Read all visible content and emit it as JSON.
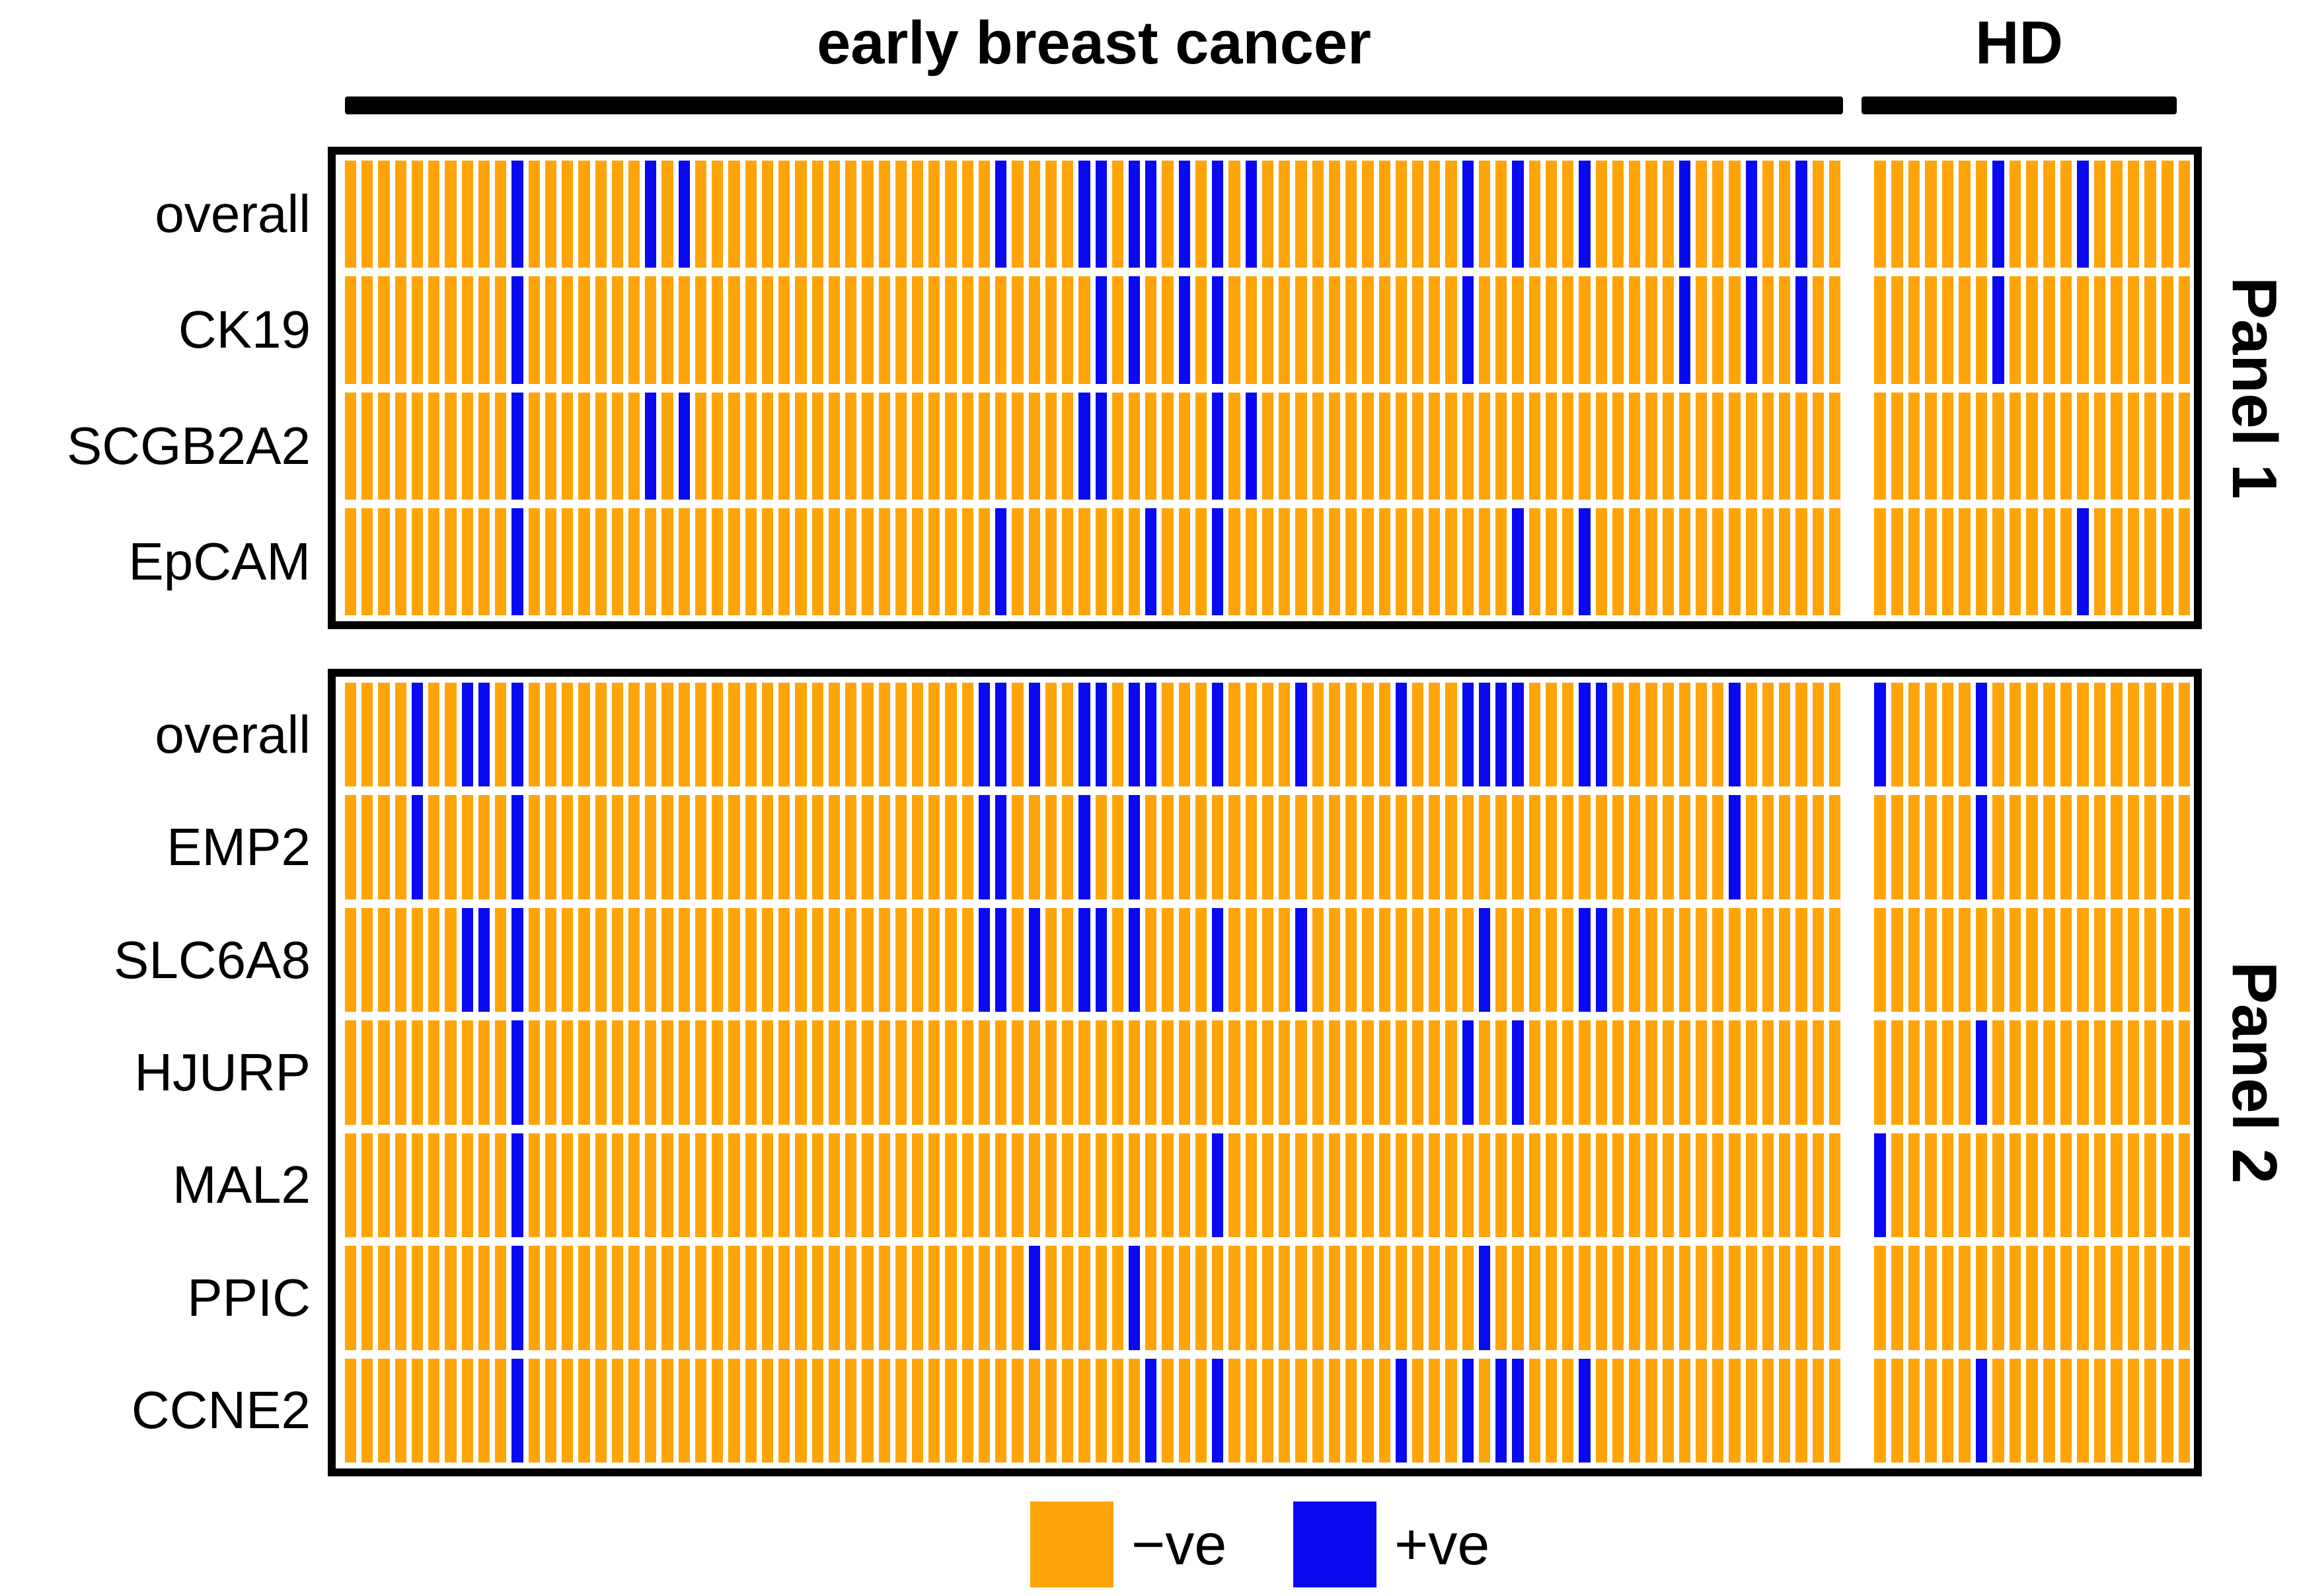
{
  "header": {
    "group1": "early breast cancer",
    "group2": "HD"
  },
  "legend": [
    {
      "label": "−ve",
      "color": "#FFA408"
    },
    {
      "label": "+ve",
      "color": "#0A0AF0"
    }
  ],
  "colors": {
    "negative": "#FFA408",
    "positive": "#0A0AF0",
    "ink": "#000000",
    "background": "#FFFFFF"
  },
  "chart_data": {
    "type": "heatmap",
    "description": "Binary positivity heatmap; each thin vertical bar is one sample. Positions are 1-based sample indices that are positive (+ve, blue); all other samples are negative (-ve, orange).",
    "groups": [
      {
        "label": "early breast cancer",
        "n_samples": 90
      },
      {
        "label": "HD",
        "n_samples": 19
      }
    ],
    "panels": [
      {
        "label": "Panel 1",
        "rows": [
          {
            "label": "overall",
            "ebc_positive": [
              11,
              19,
              21,
              40,
              45,
              46,
              48,
              49,
              51,
              53,
              55,
              68,
              71,
              75,
              81,
              85,
              88
            ],
            "hd_positive": [
              8,
              13
            ]
          },
          {
            "label": "CK19",
            "ebc_positive": [
              11,
              46,
              48,
              51,
              53,
              68,
              81,
              85,
              88
            ],
            "hd_positive": [
              8
            ]
          },
          {
            "label": "SCGB2A2",
            "ebc_positive": [
              11,
              19,
              21,
              45,
              46,
              53,
              55
            ],
            "hd_positive": []
          },
          {
            "label": "EpCAM",
            "ebc_positive": [
              11,
              40,
              49,
              53,
              71,
              75
            ],
            "hd_positive": [
              13
            ]
          }
        ]
      },
      {
        "label": "Panel 2",
        "rows": [
          {
            "label": "overall",
            "ebc_positive": [
              5,
              8,
              9,
              11,
              39,
              40,
              42,
              45,
              46,
              48,
              49,
              53,
              58,
              64,
              68,
              69,
              70,
              71,
              75,
              76,
              84
            ],
            "hd_positive": [
              1,
              7
            ]
          },
          {
            "label": "EMP2",
            "ebc_positive": [
              5,
              11,
              39,
              40,
              45,
              48,
              84
            ],
            "hd_positive": [
              7
            ]
          },
          {
            "label": "SLC6A8",
            "ebc_positive": [
              8,
              9,
              11,
              39,
              40,
              42,
              45,
              46,
              48,
              53,
              58,
              69,
              75,
              76
            ],
            "hd_positive": []
          },
          {
            "label": "HJURP",
            "ebc_positive": [
              11,
              68,
              71
            ],
            "hd_positive": [
              7
            ]
          },
          {
            "label": "MAL2",
            "ebc_positive": [
              11,
              53
            ],
            "hd_positive": [
              1
            ]
          },
          {
            "label": "PPIC",
            "ebc_positive": [
              11,
              42,
              48,
              69
            ],
            "hd_positive": []
          },
          {
            "label": "CCNE2",
            "ebc_positive": [
              11,
              49,
              53,
              64,
              68,
              70,
              71,
              75
            ],
            "hd_positive": [
              7
            ]
          }
        ]
      }
    ]
  }
}
